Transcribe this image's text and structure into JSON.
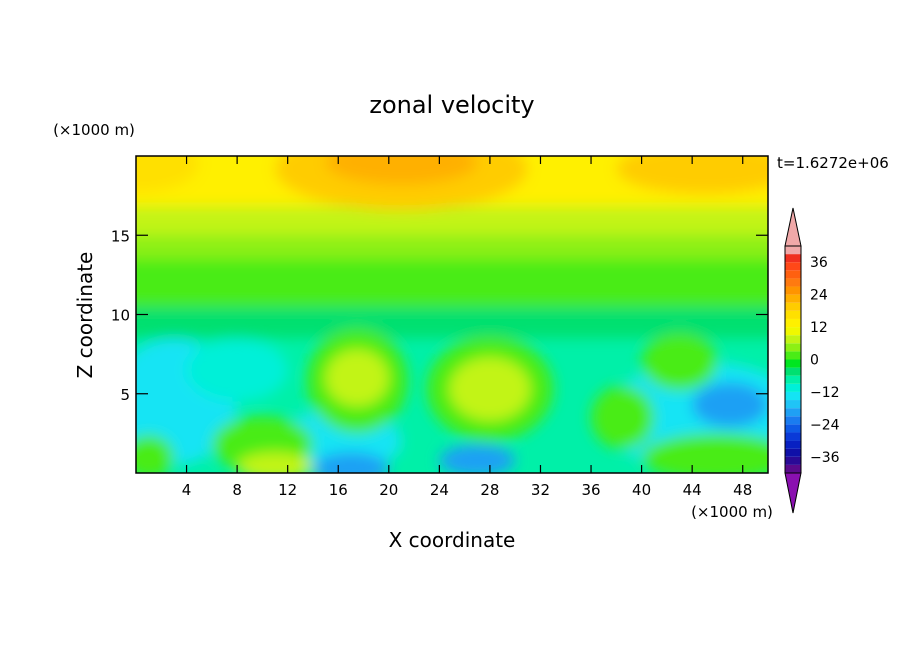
{
  "chart_data": {
    "type": "heatmap",
    "title": "zonal velocity",
    "xlabel": "X coordinate",
    "ylabel": "Z coordinate",
    "x_unit": "(×1000 m)",
    "y_unit": "(×1000 m)",
    "time_label": "t=1.6272e+06",
    "xlim": [
      0,
      50
    ],
    "ylim": [
      0,
      20
    ],
    "x_ticks": [
      4,
      8,
      12,
      16,
      20,
      24,
      28,
      32,
      36,
      40,
      44,
      48
    ],
    "y_ticks": [
      5,
      10,
      15
    ],
    "colorbar": {
      "levels": [
        -42,
        -39,
        -36,
        -33,
        -30,
        -27,
        -24,
        -21,
        -18,
        -15,
        -12,
        -9,
        -6,
        -3,
        0,
        3,
        6,
        9,
        12,
        15,
        18,
        21,
        24,
        27,
        30,
        33,
        36,
        39,
        42
      ],
      "colors": [
        "#5a0a8c",
        "#2a0a96",
        "#0f10a8",
        "#0820c2",
        "#0a3ad8",
        "#0e5ae6",
        "#1a7cf0",
        "#1fa0f4",
        "#20c4f6",
        "#14e4f4",
        "#00f0d8",
        "#00f0a8",
        "#00e070",
        "#00e620",
        "#4aec16",
        "#8cf014",
        "#c2f414",
        "#f0f800",
        "#fff000",
        "#ffe000",
        "#ffcc00",
        "#ffb000",
        "#ff9400",
        "#ff7a10",
        "#ff6010",
        "#ff4818",
        "#f03020",
        "#f0a8a8"
      ],
      "under_color": "#8a10b0",
      "over_color": "#f0a8a8",
      "tick_values": [
        36,
        24,
        12,
        0,
        -12,
        -24,
        -36
      ],
      "tick_labels": [
        "36",
        "24",
        "12",
        "0",
        "−12",
        "−24",
        "−36"
      ]
    },
    "grid": false
  }
}
